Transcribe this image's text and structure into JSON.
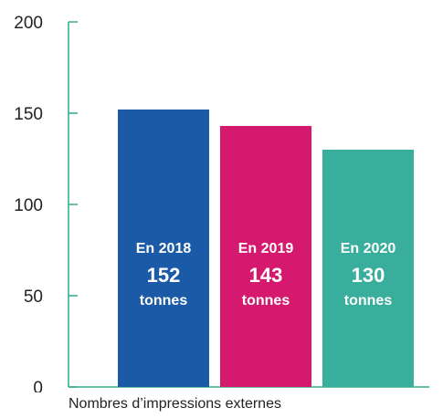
{
  "chart_data": {
    "type": "bar",
    "categories": [
      "En 2018",
      "En 2019",
      "En 2020"
    ],
    "values": [
      152,
      143,
      130
    ],
    "value_labels": [
      "152",
      "143",
      "130"
    ],
    "unit": "tonnes",
    "colors": [
      "#1b5aa6",
      "#d4196f",
      "#3aae9c"
    ],
    "axis_color": "#2eaa8e",
    "xlabel": "Nombres d’impressions externes",
    "ylim": [
      0,
      200
    ],
    "yticks": [
      0,
      50,
      100,
      150,
      200
    ],
    "grid": false
  }
}
